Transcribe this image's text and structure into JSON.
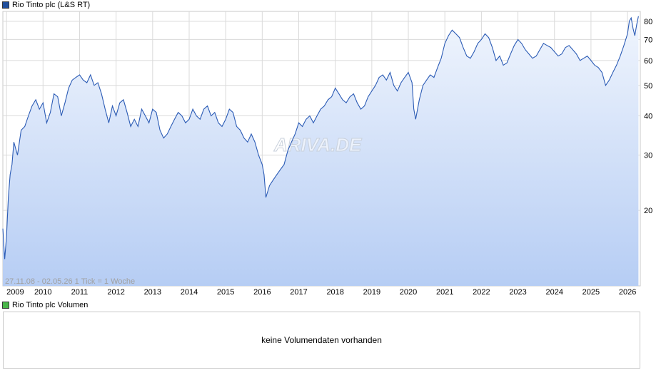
{
  "legend": {
    "price_label": "Rio Tinto plc (L&S RT)",
    "price_color": "#1f4e9c",
    "volume_label": "Rio Tinto plc Volumen",
    "volume_color": "#49b649"
  },
  "range_label": "27.11.08 - 02.05.26   1 Tick = 1 Woche",
  "watermark": "ARIVA.DE",
  "volume": {
    "empty_message": "keine Volumendaten vorhanden"
  },
  "colors": {
    "line": "#2b5bb5",
    "fill_top": "#f0f5fd",
    "fill_bottom": "#b6cdf4",
    "grid": "#dadada"
  },
  "chart_data": {
    "type": "area",
    "yscale": "log",
    "ylim": [
      11.5,
      86
    ],
    "xlim": [
      2008.9,
      2026.35
    ],
    "y_ticks": [
      20,
      30,
      40,
      50,
      60,
      70,
      80
    ],
    "x_ticks": [
      {
        "value": 2009,
        "label": "2009"
      },
      {
        "value": 2010,
        "label": "2010"
      },
      {
        "value": 2011,
        "label": "2011"
      },
      {
        "value": 2012,
        "label": "2012"
      },
      {
        "value": 2013,
        "label": "2013"
      },
      {
        "value": 2014,
        "label": "2014"
      },
      {
        "value": 2015,
        "label": "2015"
      },
      {
        "value": 2016,
        "label": "2016"
      },
      {
        "value": 2017,
        "label": "2017"
      },
      {
        "value": 2018,
        "label": "2018"
      },
      {
        "value": 2019,
        "label": "2019"
      },
      {
        "value": 2020,
        "label": "2020"
      },
      {
        "value": 2021,
        "label": "2021"
      },
      {
        "value": 2022,
        "label": "2022"
      },
      {
        "value": 2023,
        "label": "2023"
      },
      {
        "value": 2024,
        "label": "2024"
      },
      {
        "value": 2025,
        "label": "2025"
      },
      {
        "value": 2026,
        "label": "2026"
      }
    ],
    "series": [
      {
        "name": "Rio Tinto plc (L&S RT)",
        "x": [
          2008.9,
          2008.95,
          2009.0,
          2009.05,
          2009.1,
          2009.15,
          2009.2,
          2009.3,
          2009.4,
          2009.5,
          2009.6,
          2009.7,
          2009.8,
          2009.9,
          2010.0,
          2010.1,
          2010.2,
          2010.3,
          2010.4,
          2010.5,
          2010.6,
          2010.7,
          2010.8,
          2010.9,
          2011.0,
          2011.1,
          2011.2,
          2011.3,
          2011.4,
          2011.5,
          2011.6,
          2011.7,
          2011.8,
          2011.9,
          2012.0,
          2012.1,
          2012.2,
          2012.3,
          2012.4,
          2012.5,
          2012.6,
          2012.7,
          2012.8,
          2012.9,
          2013.0,
          2013.1,
          2013.2,
          2013.3,
          2013.4,
          2013.5,
          2013.6,
          2013.7,
          2013.8,
          2013.9,
          2014.0,
          2014.1,
          2014.2,
          2014.3,
          2014.4,
          2014.5,
          2014.6,
          2014.7,
          2014.8,
          2014.9,
          2015.0,
          2015.1,
          2015.2,
          2015.3,
          2015.4,
          2015.5,
          2015.6,
          2015.7,
          2015.8,
          2015.9,
          2016.0,
          2016.05,
          2016.1,
          2016.2,
          2016.3,
          2016.4,
          2016.5,
          2016.6,
          2016.7,
          2016.8,
          2016.9,
          2017.0,
          2017.1,
          2017.2,
          2017.3,
          2017.4,
          2017.5,
          2017.6,
          2017.7,
          2017.8,
          2017.9,
          2018.0,
          2018.1,
          2018.2,
          2018.3,
          2018.4,
          2018.5,
          2018.6,
          2018.7,
          2018.8,
          2018.9,
          2019.0,
          2019.1,
          2019.2,
          2019.3,
          2019.4,
          2019.5,
          2019.6,
          2019.7,
          2019.8,
          2019.9,
          2020.0,
          2020.1,
          2020.15,
          2020.2,
          2020.3,
          2020.4,
          2020.5,
          2020.6,
          2020.7,
          2020.8,
          2020.9,
          2021.0,
          2021.1,
          2021.2,
          2021.3,
          2021.4,
          2021.5,
          2021.6,
          2021.7,
          2021.8,
          2021.9,
          2022.0,
          2022.1,
          2022.2,
          2022.3,
          2022.4,
          2022.5,
          2022.6,
          2022.7,
          2022.8,
          2022.9,
          2023.0,
          2023.1,
          2023.2,
          2023.3,
          2023.4,
          2023.5,
          2023.6,
          2023.7,
          2023.8,
          2023.9,
          2024.0,
          2024.1,
          2024.2,
          2024.3,
          2024.4,
          2024.5,
          2024.6,
          2024.7,
          2024.8,
          2024.9,
          2025.0,
          2025.1,
          2025.2,
          2025.3,
          2025.4,
          2025.5,
          2025.6,
          2025.7,
          2025.8,
          2025.9,
          2026.0,
          2026.05,
          2026.1,
          2026.15,
          2026.2,
          2026.25,
          2026.3
        ],
        "y": [
          17.5,
          14,
          16.5,
          22,
          26,
          28,
          33,
          30,
          36,
          37,
          40,
          43,
          45,
          42,
          44,
          38,
          41,
          47,
          46,
          40,
          44,
          49,
          52,
          53,
          54,
          52,
          51,
          54,
          50,
          51,
          47,
          42,
          38,
          43,
          40,
          44,
          45,
          41,
          37,
          39,
          37,
          42,
          40,
          38,
          42,
          41,
          36,
          34,
          35,
          37,
          39,
          41,
          40,
          38,
          39,
          42,
          40,
          39,
          42,
          43,
          40,
          41,
          38,
          37,
          39,
          42,
          41,
          37,
          36,
          34,
          33,
          35,
          33,
          30,
          28,
          26,
          22,
          24,
          25,
          26,
          27,
          28,
          31,
          33,
          35,
          38,
          37,
          39,
          40,
          38,
          40,
          42,
          43,
          45,
          46,
          49,
          47,
          45,
          44,
          46,
          47,
          44,
          42,
          43,
          46,
          48,
          50,
          53,
          54,
          52,
          55,
          50,
          48,
          51,
          53,
          55,
          51,
          42,
          39,
          45,
          50,
          52,
          54,
          53,
          57,
          61,
          68,
          72,
          75,
          73,
          71,
          66,
          62,
          61,
          64,
          68,
          70,
          73,
          71,
          66,
          60,
          62,
          58,
          59,
          63,
          67,
          70,
          68,
          65,
          63,
          61,
          62,
          65,
          68,
          67,
          66,
          64,
          62,
          63,
          66,
          67,
          65,
          63,
          60,
          61,
          62,
          60,
          58,
          57,
          55,
          50,
          52,
          55,
          58,
          62,
          67,
          73,
          80,
          82,
          76,
          72,
          78,
          83
        ]
      }
    ]
  }
}
